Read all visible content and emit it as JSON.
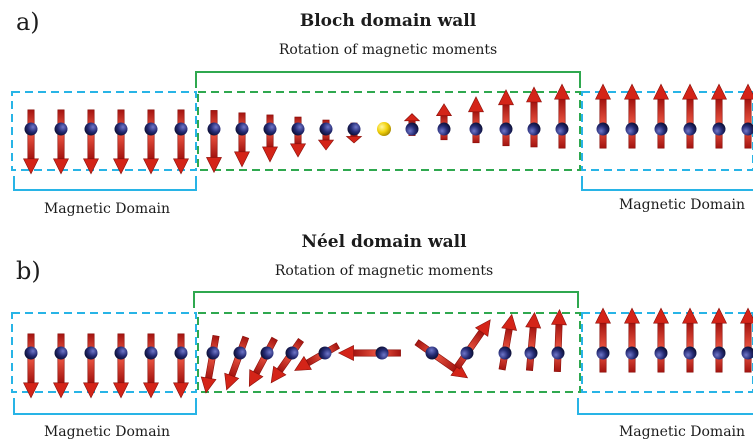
{
  "panels": [
    {
      "id": "a",
      "label": "a)",
      "title": "Bloch domain wall",
      "subtitle": "Rotation of magnetic moments",
      "left_domain": "Magnetic Domain",
      "right_domain": "Magnetic Domain"
    },
    {
      "id": "b",
      "label": "b)",
      "title": "Néel domain wall",
      "subtitle": "Rotation of magnetic moments",
      "left_domain": "Magnetic Domain",
      "right_domain": "Magnetic Domain"
    }
  ],
  "colors": {
    "arrow": "#d42418",
    "atom": "#1a1f5c",
    "center_atom": "#f2d20c",
    "domain_box": "#28b4e6",
    "wall_box": "#2fa84f"
  }
}
